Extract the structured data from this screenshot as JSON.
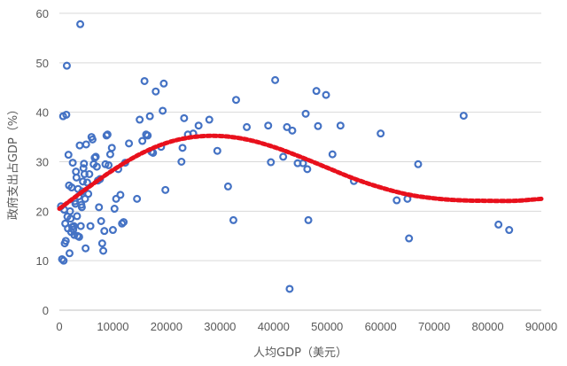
{
  "chart_data": {
    "type": "scatter",
    "title": "",
    "xlabel": "人均GDP（美元）",
    "ylabel": "政府支出占GDP（%）",
    "xlim": [
      0,
      90000
    ],
    "ylim": [
      0,
      60
    ],
    "x_ticks": [
      0,
      10000,
      20000,
      30000,
      40000,
      50000,
      60000,
      70000,
      80000,
      90000
    ],
    "y_ticks": [
      0,
      10,
      20,
      30,
      40,
      50,
      60
    ],
    "grid": "horizontal",
    "legend": "none",
    "colors": {
      "points": "#4472C4",
      "trend": "#E8101C"
    },
    "trendline": {
      "type": "polynomial",
      "order": 3,
      "points": [
        [
          0,
          20.5
        ],
        [
          5000,
          24.5
        ],
        [
          10000,
          28.3
        ],
        [
          15000,
          31.5
        ],
        [
          20000,
          33.8
        ],
        [
          25000,
          35.0
        ],
        [
          30000,
          35.2
        ],
        [
          35000,
          34.5
        ],
        [
          40000,
          33.0
        ],
        [
          45000,
          31.0
        ],
        [
          50000,
          28.8
        ],
        [
          55000,
          26.6
        ],
        [
          60000,
          24.8
        ],
        [
          65000,
          23.4
        ],
        [
          70000,
          22.6
        ],
        [
          75000,
          22.2
        ],
        [
          80000,
          22.1
        ],
        [
          85000,
          22.1
        ],
        [
          90000,
          22.5
        ]
      ]
    },
    "series": [
      {
        "points": [
          [
            300,
            21
          ],
          [
            500,
            10.3
          ],
          [
            700,
            39.2
          ],
          [
            800,
            10
          ],
          [
            900,
            20.3
          ],
          [
            1000,
            13.5
          ],
          [
            1100,
            17.5
          ],
          [
            1200,
            14
          ],
          [
            1300,
            39.5
          ],
          [
            1400,
            49.4
          ],
          [
            1500,
            18.9
          ],
          [
            1600,
            16.5
          ],
          [
            1700,
            31.4
          ],
          [
            1800,
            25.2
          ],
          [
            1900,
            11.5
          ],
          [
            2000,
            20
          ],
          [
            2100,
            18.5
          ],
          [
            2200,
            15.8
          ],
          [
            2300,
            24.8
          ],
          [
            2400,
            16.8
          ],
          [
            2500,
            29.8
          ],
          [
            2600,
            16.3
          ],
          [
            2700,
            17
          ],
          [
            2800,
            15.2
          ],
          [
            2900,
            22
          ],
          [
            3000,
            21.5
          ],
          [
            3100,
            28
          ],
          [
            3200,
            26.8
          ],
          [
            3300,
            19
          ],
          [
            3400,
            15
          ],
          [
            3500,
            24.5
          ],
          [
            3600,
            23
          ],
          [
            3700,
            14.8
          ],
          [
            3800,
            33.3
          ],
          [
            3900,
            57.8
          ],
          [
            4000,
            17
          ],
          [
            4100,
            21.3
          ],
          [
            4200,
            20.8
          ],
          [
            4300,
            24
          ],
          [
            4400,
            26
          ],
          [
            4500,
            28.7
          ],
          [
            4600,
            29.6
          ],
          [
            4700,
            27.5
          ],
          [
            4800,
            22.5
          ],
          [
            4900,
            12.5
          ],
          [
            5000,
            33.5
          ],
          [
            5200,
            25.8
          ],
          [
            5400,
            23.5
          ],
          [
            5600,
            27.5
          ],
          [
            5800,
            17
          ],
          [
            6000,
            35
          ],
          [
            6200,
            34.5
          ],
          [
            6400,
            29.5
          ],
          [
            6600,
            30.8
          ],
          [
            6800,
            31
          ],
          [
            7000,
            29
          ],
          [
            7200,
            26.2
          ],
          [
            7400,
            20.8
          ],
          [
            7600,
            26.5
          ],
          [
            7800,
            18
          ],
          [
            8000,
            13.5
          ],
          [
            8200,
            12
          ],
          [
            8400,
            16
          ],
          [
            8600,
            29.5
          ],
          [
            8800,
            35.3
          ],
          [
            9000,
            35.5
          ],
          [
            9200,
            29.3
          ],
          [
            9500,
            31.5
          ],
          [
            9800,
            32.8
          ],
          [
            10000,
            16.2
          ],
          [
            10300,
            20.5
          ],
          [
            10600,
            22.5
          ],
          [
            11000,
            28.5
          ],
          [
            11400,
            23.3
          ],
          [
            11700,
            17.5
          ],
          [
            12000,
            17.8
          ],
          [
            12300,
            29.8
          ],
          [
            13000,
            33.7
          ],
          [
            14500,
            22.5
          ],
          [
            15000,
            38.5
          ],
          [
            15500,
            34.2
          ],
          [
            15900,
            46.3
          ],
          [
            16200,
            35.5
          ],
          [
            16500,
            35.3
          ],
          [
            16900,
            39.2
          ],
          [
            17200,
            32
          ],
          [
            17500,
            31.8
          ],
          [
            18000,
            44.2
          ],
          [
            19000,
            33
          ],
          [
            19300,
            40.3
          ],
          [
            19500,
            45.8
          ],
          [
            19800,
            24.3
          ],
          [
            22800,
            30
          ],
          [
            23000,
            32.8
          ],
          [
            23300,
            38.8
          ],
          [
            24000,
            35.5
          ],
          [
            25000,
            35.7
          ],
          [
            26000,
            37.3
          ],
          [
            28000,
            38.5
          ],
          [
            29500,
            32.2
          ],
          [
            31500,
            25
          ],
          [
            32500,
            18.2
          ],
          [
            33000,
            42.5
          ],
          [
            35000,
            37
          ],
          [
            39000,
            37.3
          ],
          [
            39500,
            29.9
          ],
          [
            40300,
            46.5
          ],
          [
            41800,
            31
          ],
          [
            42500,
            37
          ],
          [
            43000,
            4.3
          ],
          [
            43500,
            36.3
          ],
          [
            44500,
            29.7
          ],
          [
            45500,
            29.7
          ],
          [
            46000,
            39.7
          ],
          [
            46300,
            28.5
          ],
          [
            46500,
            18.2
          ],
          [
            48000,
            44.3
          ],
          [
            48300,
            37.2
          ],
          [
            49800,
            43.5
          ],
          [
            51000,
            31.5
          ],
          [
            52500,
            37.3
          ],
          [
            55000,
            26.1
          ],
          [
            60000,
            35.7
          ],
          [
            63000,
            22.2
          ],
          [
            65000,
            22.5
          ],
          [
            65300,
            14.5
          ],
          [
            67000,
            29.5
          ],
          [
            75500,
            39.3
          ],
          [
            82000,
            17.3
          ],
          [
            84000,
            16.2
          ]
        ]
      }
    ]
  }
}
